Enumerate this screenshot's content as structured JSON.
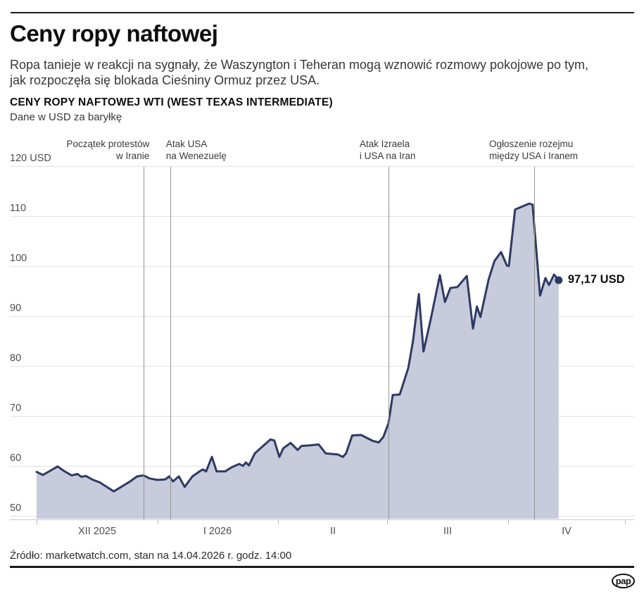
{
  "header": {
    "title": "Ceny ropy naftowej",
    "lede_lines": [
      "Ropa tanieje w reakcji na sygnały, że Waszyngton i Teheran mogą wznowić rozmowy pokojowe po tym,",
      "jak rozpoczęła się blokada Cieśniny Ormuz przez USA."
    ]
  },
  "chart_header": {
    "title": "CENY ROPY NAFTOWEJ WTI (WEST TEXAS INTERMEDIATE)",
    "subtitle": "Dane w USD za baryłkę"
  },
  "chart_data": {
    "type": "area",
    "title": "CENY ROPY NAFTOWEJ WTI (WEST TEXAS INTERMEDIATE)",
    "ylabel": "USD za baryłkę",
    "ylim": [
      50,
      120
    ],
    "grid": true,
    "y_ticks": [
      {
        "value": 120,
        "label": "120 USD"
      },
      {
        "value": 110,
        "label": "110"
      },
      {
        "value": 100,
        "label": "100"
      },
      {
        "value": 90,
        "label": "90"
      },
      {
        "value": 80,
        "label": "80"
      },
      {
        "value": 70,
        "label": "70"
      },
      {
        "value": 60,
        "label": "60"
      },
      {
        "value": 50,
        "label": "50"
      }
    ],
    "x_start_date": "2025-12-01",
    "x_end_date": "2026-05-01",
    "x_data_end_date": "2026-04-14",
    "x_tick_days": [
      0,
      31,
      62,
      90,
      121,
      151
    ],
    "x_tick_labels": [
      "XII 2025",
      "I 2026",
      "II",
      "III",
      "IV"
    ],
    "annotations": [
      {
        "lines": [
          "Początek protestów",
          "w Iranie"
        ],
        "day": 27.5,
        "align": "right",
        "dx": 8
      },
      {
        "lines": [
          "Atak USA",
          "na Wenezuelę"
        ],
        "day": 34.3,
        "align": "left",
        "dx": -6
      },
      {
        "lines": [
          "Atak Izraela",
          "i USA na Iran"
        ],
        "day": 90.3,
        "align": "left",
        "dx": -41
      },
      {
        "lines": [
          "Ogłoszenie rozejmu",
          "między USA i Iranem"
        ],
        "day": 127.7,
        "align": "left",
        "dx": -64
      }
    ],
    "end_value": 97.17,
    "end_label": "97,17 USD",
    "points": [
      [
        0,
        58.8
      ],
      [
        1.6,
        58.2
      ],
      [
        3,
        58.8
      ],
      [
        5.4,
        59.9
      ],
      [
        7,
        59.0
      ],
      [
        9,
        58.1
      ],
      [
        10.5,
        58.4
      ],
      [
        11.5,
        57.8
      ],
      [
        12.6,
        58.0
      ],
      [
        14.5,
        57.2
      ],
      [
        16.2,
        56.7
      ],
      [
        18,
        55.8
      ],
      [
        19.8,
        54.9
      ],
      [
        21.3,
        55.6
      ],
      [
        24,
        56.9
      ],
      [
        25.8,
        57.9
      ],
      [
        27.5,
        58.1
      ],
      [
        29,
        57.5
      ],
      [
        31,
        57.2
      ],
      [
        33,
        57.3
      ],
      [
        34,
        57.9
      ],
      [
        35,
        56.9
      ],
      [
        36.5,
        57.9
      ],
      [
        38,
        55.8
      ],
      [
        40,
        57.9
      ],
      [
        42,
        59.0
      ],
      [
        42.7,
        59.3
      ],
      [
        43.5,
        58.9
      ],
      [
        45,
        61.8
      ],
      [
        46.2,
        58.9
      ],
      [
        48.4,
        58.9
      ],
      [
        50,
        59.7
      ],
      [
        52,
        60.4
      ],
      [
        53,
        60.0
      ],
      [
        53.7,
        60.7
      ],
      [
        54.5,
        60.1
      ],
      [
        56,
        62.5
      ],
      [
        58,
        63.9
      ],
      [
        60,
        65.3
      ],
      [
        61,
        65.1
      ],
      [
        62.3,
        61.8
      ],
      [
        63.3,
        63.5
      ],
      [
        65.2,
        64.6
      ],
      [
        67,
        63.2
      ],
      [
        68,
        64.0
      ],
      [
        70,
        64.1
      ],
      [
        72.4,
        64.3
      ],
      [
        74.2,
        62.5
      ],
      [
        77.3,
        62.3
      ],
      [
        78.6,
        61.8
      ],
      [
        79.4,
        62.5
      ],
      [
        81,
        66.1
      ],
      [
        83.3,
        66.2
      ],
      [
        84.5,
        65.7
      ],
      [
        86.3,
        65.0
      ],
      [
        87.8,
        64.7
      ],
      [
        89,
        65.8
      ],
      [
        90.3,
        68.5
      ],
      [
        91.4,
        74.2
      ],
      [
        93.2,
        74.3
      ],
      [
        95.4,
        79.6
      ],
      [
        96.6,
        85.0
      ],
      [
        98.1,
        94.4
      ],
      [
        99.3,
        82.9
      ],
      [
        101.2,
        89.5
      ],
      [
        103.5,
        98.2
      ],
      [
        104.8,
        92.8
      ],
      [
        106.2,
        95.6
      ],
      [
        108,
        95.8
      ],
      [
        110.4,
        98.0
      ],
      [
        112,
        87.5
      ],
      [
        113,
        91.9
      ],
      [
        113.9,
        89.8
      ],
      [
        116,
        97.3
      ],
      [
        117.5,
        101.0
      ],
      [
        119.2,
        102.8
      ],
      [
        120.7,
        100.1
      ],
      [
        121.2,
        100.0
      ],
      [
        122.8,
        111.3
      ],
      [
        126.4,
        112.5
      ],
      [
        127.3,
        112.3
      ],
      [
        129.2,
        94.1
      ],
      [
        130.6,
        97.6
      ],
      [
        131.5,
        96.2
      ],
      [
        132.8,
        98.3
      ],
      [
        134,
        97.17
      ]
    ]
  },
  "colors": {
    "line": "#2e3a62",
    "fill": "#c7cbdb",
    "grid": "#e3e3e3",
    "annotation_line": "#969696",
    "axis": "#c9c9c9",
    "text_dark": "#0d0d0d",
    "text_gray": "#4d4d4d"
  },
  "footer": {
    "source": "Źródło: marketwatch.com, stan na 14.04.2026 r. godz. 14:00",
    "logo_text": "pap"
  }
}
